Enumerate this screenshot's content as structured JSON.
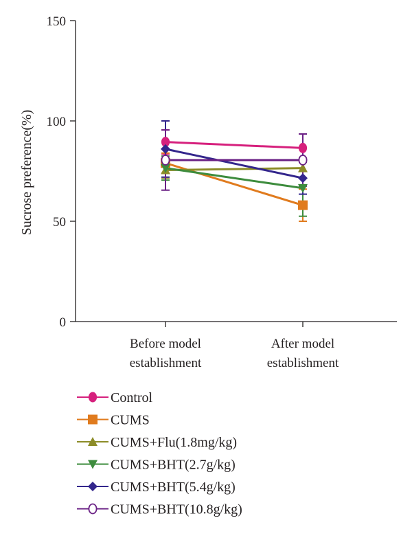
{
  "chart_data": {
    "type": "line",
    "title": "",
    "xlabel": "",
    "ylabel": "Sucrose preference(%)",
    "ylim": [
      0,
      150
    ],
    "yticks": [
      0,
      50,
      100,
      150
    ],
    "categories": [
      [
        "Before model",
        "establishment"
      ],
      [
        "After model",
        "establishment"
      ]
    ],
    "grid": false,
    "legend_position": "bottom",
    "series": [
      {
        "name": "Control",
        "color": "#d6207d",
        "marker": "circle-filled",
        "values": [
          89.5,
          86.5
        ],
        "errors": [
          6,
          7
        ]
      },
      {
        "name": "CUMS",
        "color": "#e07b1e",
        "marker": "square",
        "values": [
          79,
          58
        ],
        "errors": [
          5,
          8
        ]
      },
      {
        "name": "CUMS+Flu(1.8mg/kg)",
        "color": "#8c8c28",
        "marker": "triangle-up",
        "values": [
          75.5,
          76.5
        ],
        "errors": [
          4,
          5
        ]
      },
      {
        "name": "CUMS+BHT(2.7g/kg)",
        "color": "#3d8c3d",
        "marker": "triangle-down",
        "values": [
          76.5,
          66.5
        ],
        "errors": [
          6,
          14
        ]
      },
      {
        "name": "CUMS+BHT(5.4g/kg)",
        "color": "#33268c",
        "marker": "diamond",
        "values": [
          86,
          71.5
        ],
        "errors": [
          14,
          8
        ]
      },
      {
        "name": "CUMS+BHT(10.8g/kg)",
        "color": "#6a2185",
        "marker": "circle-open",
        "values": [
          80.5,
          80.5
        ],
        "errors": [
          15,
          13
        ]
      }
    ]
  }
}
